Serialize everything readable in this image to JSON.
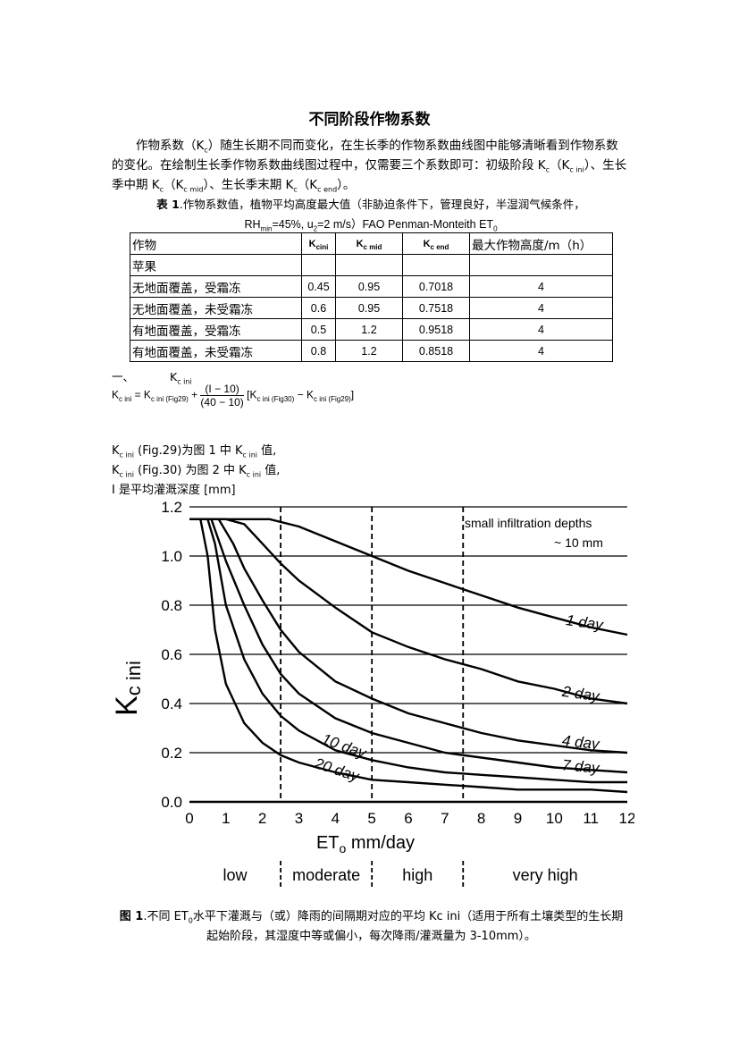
{
  "title": "不同阶段作物系数",
  "intro": {
    "p1": "作物系数（K",
    "p1_sub": "c",
    "p2": "）随生长期不同而变化，在生长季的作物系数曲线图中能够清晰看到作物系数的变化。在绘制生长季作物系数曲线图过程中，仅需要三个系数即可：初级阶段 K",
    "p2_sub": "c",
    "p3": "（K",
    "p3_sub": "c ini",
    "p4": "）、生长季中期 K",
    "p4_sub": "c",
    "p5": "（K",
    "p5_sub": "c mid",
    "p6": "）、生长季末期 K",
    "p6_sub": "c",
    "p7": "（K",
    "p7_sub": "c end",
    "p8": "）。"
  },
  "table_caption": {
    "label": "表 1",
    "text": ".作物系数值，植物平均高度最大值（非胁迫条件下，管理良好，半湿润气候条件，",
    "line2_a": "RH",
    "line2_a_sub": "min",
    "line2_b": "=45%, u",
    "line2_b_sub": "2",
    "line2_c": "=2 m/s）FAO Penman-Monteith ET",
    "line2_c_sub": "0"
  },
  "table": {
    "headers": {
      "crop": "作物",
      "kcini": "K",
      "kcini_sub": "cini",
      "kcmid": "K",
      "kcmid_sub": "c mid",
      "kcend": "K",
      "kcend_sub": "c end",
      "height": "最大作物高度/m（h）"
    },
    "rows": [
      {
        "crop": "苹果",
        "kcini": "",
        "kcmid": "",
        "kcend": "",
        "height": ""
      },
      {
        "crop": "无地面覆盖，受霜冻",
        "kcini": "0.45",
        "kcmid": "0.95",
        "kcend": "0.7018",
        "height": "4"
      },
      {
        "crop": "无地面覆盖，未受霜冻",
        "kcini": "0.6",
        "kcmid": "0.95",
        "kcend": "0.7518",
        "height": "4"
      },
      {
        "crop": "有地面覆盖，受霜冻",
        "kcini": "0.5",
        "kcmid": "1.2",
        "kcend": "0.9518",
        "height": "4"
      },
      {
        "crop": "有地面覆盖，未受霜冻",
        "kcini": "0.8",
        "kcmid": "1.2",
        "kcend": "0.8518",
        "height": "4"
      }
    ]
  },
  "section": {
    "number": "一、",
    "name": "K",
    "name_sub": "c ini"
  },
  "formula": {
    "lhs": "K",
    "lhs_sub": "c ini",
    "eq": " = K",
    "t1_sub": "c ini (Fig29)",
    "plus": " + ",
    "num": "(I − 10)",
    "den": "(40 − 10)",
    "b_open": "[K",
    "t2_sub": "c ini (Fig30)",
    "minus": " − K",
    "t3_sub": "c ini (Fig29)",
    "b_close": "]"
  },
  "definitions": {
    "d1_a": "K",
    "d1_a_sub": "c ini",
    "d1_b": " (Fig.29)为图 1 中 K",
    "d1_b_sub": "c ini",
    "d1_c": " 值,",
    "d2_a": "K",
    "d2_a_sub": "c ini",
    "d2_b": " (Fig.30) 为图 2 中 K",
    "d2_b_sub": "c ini",
    "d2_c": " 值,",
    "d3": "I 是平均灌溉深度 [mm]"
  },
  "chart_data": {
    "type": "line",
    "title": "",
    "xlabel": "ET",
    "xlabel_sub": "o",
    "xlabel_rest": " mm/day",
    "ylabel": "K",
    "ylabel_sub": "c ini",
    "xlim": [
      0,
      12
    ],
    "ylim": [
      0,
      1.2
    ],
    "xticks": [
      "0",
      "1",
      "2",
      "3",
      "4",
      "5",
      "6",
      "7",
      "8",
      "9",
      "10",
      "11",
      "12"
    ],
    "yticks": [
      "0.0",
      "0.2",
      "0.4",
      "0.6",
      "0.8",
      "1.0",
      "1.2"
    ],
    "grid": "horizontal",
    "annotation_line1": "small infiltration depths",
    "annotation_line2": "~ 10 mm",
    "zone_boundaries": [
      2.5,
      5,
      7.5
    ],
    "zones": [
      "low",
      "moderate",
      "high",
      "very high"
    ],
    "series": [
      {
        "name": "1 day",
        "x": [
          0,
          2.2,
          3,
          4,
          5,
          6,
          7,
          8,
          9,
          10,
          11,
          12
        ],
        "y": [
          1.15,
          1.15,
          1.12,
          1.06,
          1.0,
          0.94,
          0.89,
          0.84,
          0.79,
          0.75,
          0.71,
          0.68
        ]
      },
      {
        "name": "2 day",
        "x": [
          0,
          1,
          1.5,
          2,
          2.5,
          3,
          4,
          5,
          6,
          7,
          8,
          9,
          10,
          11,
          12
        ],
        "y": [
          1.15,
          1.15,
          1.13,
          1.05,
          0.97,
          0.9,
          0.79,
          0.69,
          0.63,
          0.58,
          0.54,
          0.49,
          0.46,
          0.42,
          0.4
        ]
      },
      {
        "name": "4 day",
        "x": [
          0,
          0.8,
          1.2,
          1.5,
          2,
          2.5,
          3,
          4,
          5,
          6,
          7,
          8,
          9,
          10,
          11,
          12
        ],
        "y": [
          1.15,
          1.15,
          1.05,
          0.95,
          0.82,
          0.7,
          0.61,
          0.49,
          0.42,
          0.36,
          0.32,
          0.28,
          0.25,
          0.23,
          0.21,
          0.2
        ]
      },
      {
        "name": "7 day",
        "x": [
          0,
          0.6,
          1,
          1.5,
          2,
          2.5,
          3,
          4,
          5,
          6,
          7,
          8,
          9,
          10,
          11,
          12
        ],
        "y": [
          1.15,
          1.15,
          0.98,
          0.8,
          0.64,
          0.52,
          0.44,
          0.34,
          0.28,
          0.24,
          0.2,
          0.18,
          0.16,
          0.14,
          0.13,
          0.12
        ]
      },
      {
        "name": "10 day",
        "x": [
          0,
          0.5,
          0.7,
          1,
          1.5,
          2,
          2.5,
          3,
          4,
          5,
          6,
          7,
          8,
          9,
          10,
          11,
          12
        ],
        "y": [
          1.15,
          1.15,
          1.05,
          0.8,
          0.58,
          0.44,
          0.35,
          0.29,
          0.21,
          0.17,
          0.14,
          0.12,
          0.11,
          0.1,
          0.09,
          0.08,
          0.08
        ]
      },
      {
        "name": "20 day",
        "x": [
          0,
          0.3,
          0.5,
          0.7,
          1,
          1.5,
          2,
          2.5,
          3,
          4,
          5,
          6,
          7,
          8,
          9,
          10,
          11,
          12
        ],
        "y": [
          1.15,
          1.15,
          1.0,
          0.7,
          0.48,
          0.32,
          0.24,
          0.19,
          0.16,
          0.12,
          0.09,
          0.08,
          0.07,
          0.06,
          0.05,
          0.05,
          0.05,
          0.04
        ]
      }
    ]
  },
  "figure_caption": {
    "label": "图 1",
    "text_a": ".不同 ET",
    "text_a_sub": "0",
    "text_b": "水平下灌溉与（或）降雨的间隔期对应的平均 Kc ini（适用于所有土壤类型的生长期起始阶段，其湿度中等或偏小，每次降雨/灌溉量为 3-10mm）。"
  }
}
